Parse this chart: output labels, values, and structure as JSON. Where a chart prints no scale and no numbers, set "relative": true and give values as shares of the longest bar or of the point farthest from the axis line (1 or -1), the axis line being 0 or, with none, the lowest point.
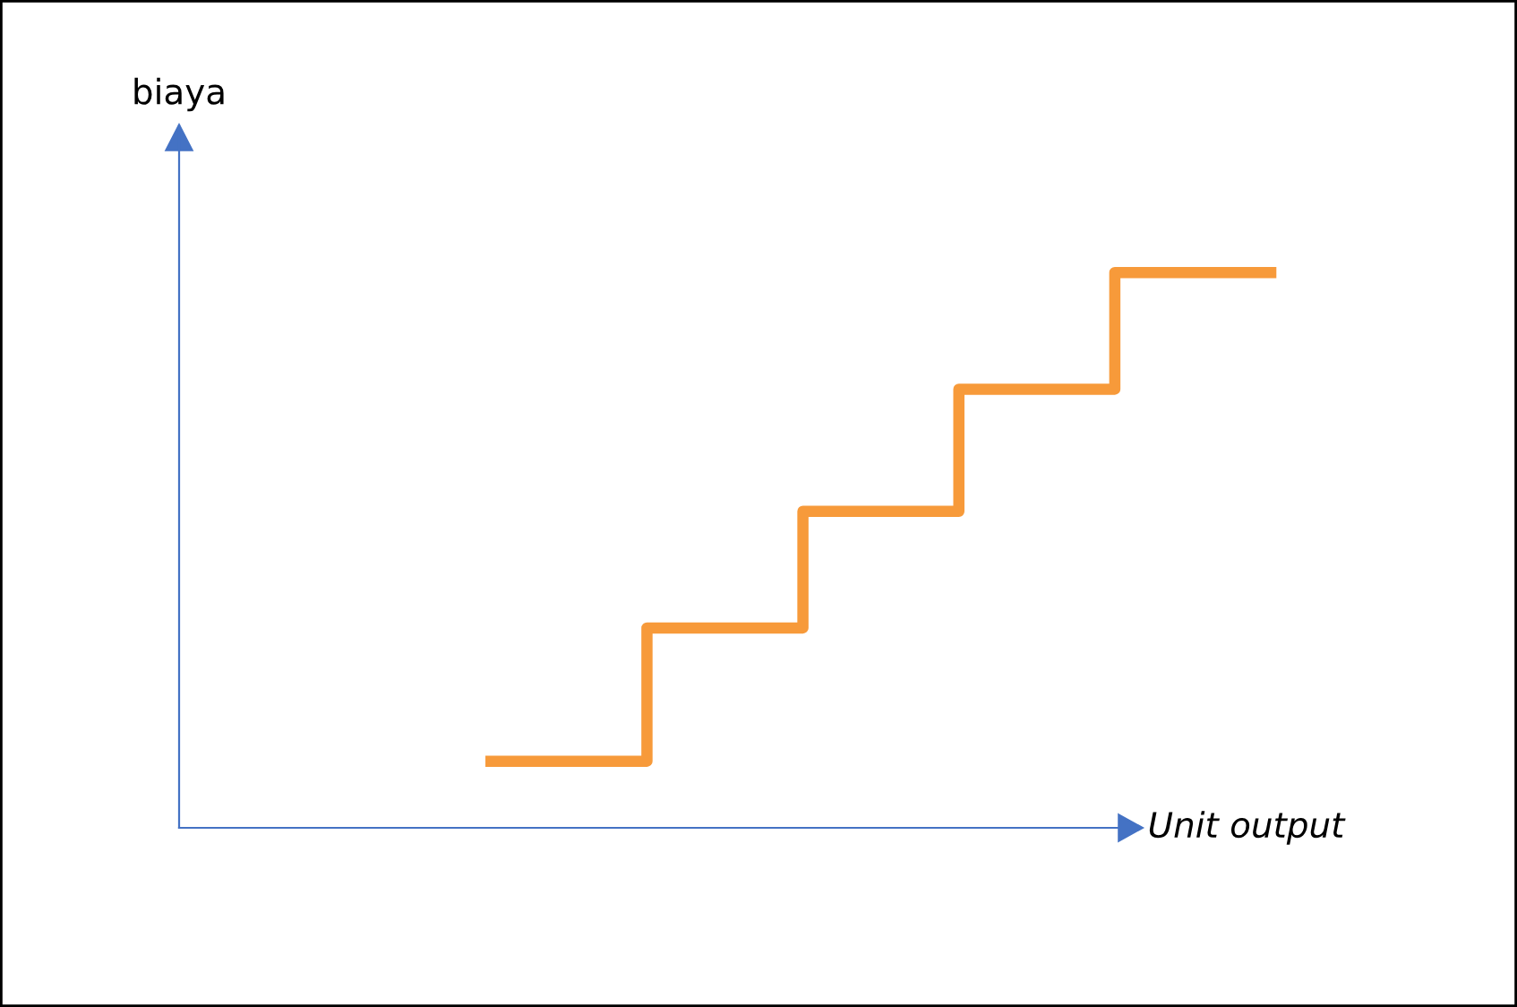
{
  "chart_data": {
    "type": "step",
    "xlabel": "Unit output",
    "annotations": [
      "biaya"
    ],
    "relative": true,
    "categories": [
      null,
      null,
      null,
      null,
      null,
      null
    ],
    "values": [
      0.12,
      0.36,
      0.57,
      0.79,
      1.0,
      1.0
    ],
    "color": "#f79a3a"
  }
}
